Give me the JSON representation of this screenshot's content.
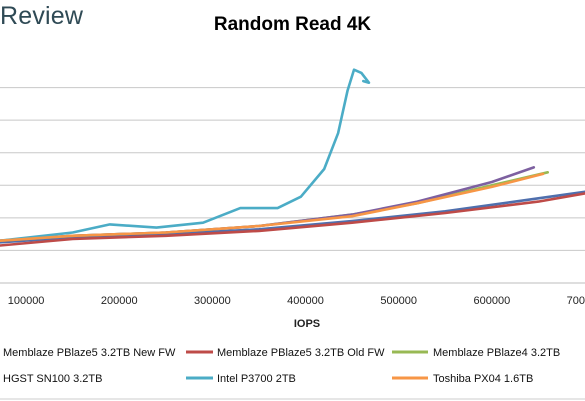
{
  "brand": "Review",
  "chart_data": {
    "type": "line",
    "title": "Random Read 4K",
    "xlabel": "IOPS",
    "ylabel": "",
    "xlim": [
      72000,
      700000
    ],
    "ylim": [
      0,
      7
    ],
    "xticks": [
      100000,
      200000,
      300000,
      400000,
      500000,
      600000,
      700000
    ],
    "xtick_labels": [
      "100000",
      "200000",
      "300000",
      "400000",
      "500000",
      "600000",
      "700000"
    ],
    "yticks": [
      0,
      1,
      2,
      3,
      4,
      5,
      6
    ],
    "grid": "horizontal",
    "legend_position": "bottom",
    "series": [
      {
        "name": "Memblaze PBlaze5 3.2TB New FW",
        "color": "#4f6fad",
        "x": [
          72000,
          150000,
          250000,
          350000,
          450000,
          550000,
          650000,
          700000
        ],
        "y": [
          1.25,
          1.4,
          1.5,
          1.65,
          1.9,
          2.2,
          2.6,
          2.8
        ]
      },
      {
        "name": "Memblaze PBlaze5 3.2TB Old FW",
        "color": "#be4b48",
        "x": [
          72000,
          150000,
          250000,
          350000,
          450000,
          550000,
          650000,
          700000
        ],
        "y": [
          1.15,
          1.35,
          1.45,
          1.6,
          1.85,
          2.15,
          2.5,
          2.75
        ]
      },
      {
        "name": "Memblaze PBlaze4 3.2TB",
        "color": "#98b954",
        "x": [
          72000,
          150000,
          250000,
          350000,
          450000,
          520000,
          600000,
          660000
        ],
        "y": [
          1.3,
          1.45,
          1.55,
          1.75,
          2.1,
          2.45,
          3.0,
          3.4
        ]
      },
      {
        "name": "HGST SN100 3.2TB",
        "color": "#7d60a0",
        "x": [
          72000,
          150000,
          250000,
          350000,
          450000,
          520000,
          600000,
          645000
        ],
        "y": [
          1.3,
          1.45,
          1.55,
          1.75,
          2.1,
          2.5,
          3.1,
          3.55
        ]
      },
      {
        "name": "Intel P3700 2TB",
        "color": "#4bacc6",
        "x": [
          72000,
          150000,
          190000,
          240000,
          290000,
          330000,
          370000,
          395000,
          420000,
          435000,
          445000,
          452000,
          460000,
          468000,
          462000
        ],
        "y": [
          1.3,
          1.55,
          1.8,
          1.7,
          1.85,
          2.3,
          2.3,
          2.65,
          3.5,
          4.6,
          5.9,
          6.55,
          6.45,
          6.15,
          6.2
        ]
      },
      {
        "name": "Toshiba PX04 1.6TB",
        "color": "#f79646",
        "x": [
          72000,
          150000,
          250000,
          350000,
          450000,
          520000,
          600000,
          655000
        ],
        "y": [
          1.3,
          1.45,
          1.55,
          1.75,
          2.05,
          2.45,
          2.95,
          3.35
        ]
      }
    ]
  }
}
